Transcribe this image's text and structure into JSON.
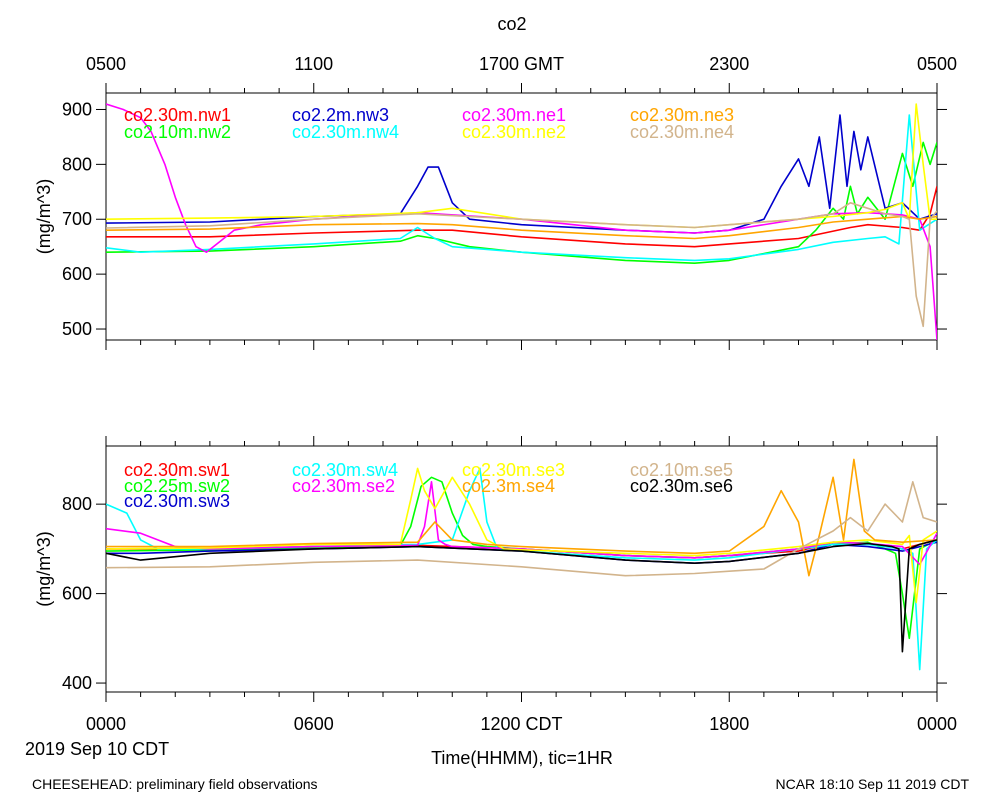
{
  "title": "co2",
  "top_axis": {
    "labels": [
      "0500",
      "1100",
      "1700 GMT",
      "2300",
      "0500"
    ]
  },
  "bottom_axis": {
    "labels": [
      "0000",
      "0600",
      "1200 CDT",
      "1800",
      "0000"
    ],
    "date": "2019 Sep 10 CDT",
    "xlabel": "Time(HHMM), tic=1HR"
  },
  "footer": {
    "left": "CHEESEHEAD: preliminary field observations",
    "right": "NCAR 18:10 Sep 11 2019 CDT"
  },
  "chart_data": [
    {
      "type": "line",
      "panel": "top",
      "ylabel": "(mg/m^3)",
      "ylim": [
        480,
        930
      ],
      "yticks": [
        500,
        600,
        700,
        800,
        900
      ],
      "xlim": [
        0,
        24
      ],
      "series": [
        {
          "name": "co2.30m.nw1",
          "color": "#ff0000",
          "x": [
            0,
            3,
            6,
            9,
            10,
            12,
            15,
            17,
            18,
            20,
            21.5,
            22,
            23,
            23.5,
            23.8,
            24
          ],
          "y": [
            668,
            668,
            675,
            680,
            680,
            668,
            655,
            650,
            655,
            665,
            685,
            690,
            685,
            680,
            710,
            760
          ]
        },
        {
          "name": "co2.10m.nw2",
          "color": "#00ff00",
          "x": [
            0,
            3,
            6,
            8.5,
            9,
            9.5,
            10.5,
            12,
            15,
            17,
            18,
            20,
            20.5,
            21,
            21.3,
            21.5,
            21.7,
            22,
            22.5,
            23,
            23.3,
            23.6,
            23.8,
            24
          ],
          "y": [
            640,
            642,
            650,
            660,
            670,
            665,
            650,
            640,
            625,
            620,
            625,
            650,
            680,
            720,
            700,
            760,
            710,
            740,
            700,
            820,
            760,
            840,
            800,
            840
          ]
        },
        {
          "name": "co2.2m.nw3",
          "color": "#0000cc",
          "x": [
            0,
            3,
            6,
            8.5,
            9,
            9.3,
            9.6,
            10,
            10.5,
            12,
            15,
            17,
            18,
            19,
            19.5,
            20,
            20.3,
            20.6,
            20.9,
            21.2,
            21.4,
            21.6,
            21.8,
            22,
            22.5,
            23,
            23.5,
            24
          ],
          "y": [
            693,
            695,
            705,
            710,
            760,
            795,
            795,
            730,
            700,
            690,
            680,
            675,
            680,
            700,
            760,
            810,
            760,
            850,
            720,
            890,
            760,
            860,
            790,
            850,
            720,
            730,
            700,
            710
          ]
        },
        {
          "name": "co2.30m.nw4",
          "color": "#00ffff",
          "x": [
            0,
            1,
            3,
            6,
            8.5,
            9,
            9.5,
            10,
            12,
            15,
            17,
            18,
            20,
            21,
            22,
            22.5,
            22.9,
            23.2,
            23.5,
            24
          ],
          "y": [
            648,
            640,
            645,
            655,
            665,
            685,
            665,
            650,
            640,
            630,
            625,
            628,
            645,
            658,
            665,
            668,
            655,
            890,
            680,
            700
          ]
        },
        {
          "name": "co2.30m.ne1",
          "color": "#ff00ff",
          "x": [
            0,
            0.5,
            1,
            1.3,
            1.7,
            2.0,
            2.3,
            2.6,
            2.9,
            3.3,
            3.7,
            4.5,
            6,
            9,
            12,
            15,
            17,
            18,
            20,
            21,
            22,
            23,
            23.5,
            23.8,
            24
          ],
          "y": [
            910,
            900,
            885,
            860,
            800,
            740,
            690,
            650,
            640,
            660,
            680,
            690,
            700,
            712,
            700,
            680,
            675,
            680,
            700,
            710,
            712,
            708,
            700,
            650,
            480
          ]
        },
        {
          "name": "co2.30m.ne2",
          "color": "#ffff00",
          "x": [
            0,
            3,
            6,
            9,
            10,
            12,
            15,
            17,
            18,
            20,
            21,
            22,
            22.5,
            23,
            23.2,
            23.4,
            23.6,
            23.8,
            24
          ],
          "y": [
            700,
            702,
            705,
            712,
            720,
            700,
            690,
            685,
            690,
            700,
            705,
            712,
            718,
            730,
            700,
            910,
            800,
            700,
            700
          ]
        },
        {
          "name": "co2.30m.ne3",
          "color": "#ffa500",
          "x": [
            0,
            3,
            6,
            9,
            10,
            12,
            15,
            17,
            18,
            20,
            21,
            22,
            23,
            23.5,
            24
          ],
          "y": [
            680,
            682,
            690,
            692,
            690,
            680,
            670,
            665,
            670,
            685,
            695,
            700,
            705,
            700,
            705
          ]
        },
        {
          "name": "co2.30m.ne4",
          "color": "#d2b48c",
          "x": [
            0,
            3,
            6,
            9,
            12,
            15,
            17,
            18,
            20,
            21,
            21.5,
            22,
            22.5,
            23,
            23.2,
            23.4,
            23.6,
            23.8,
            24
          ],
          "y": [
            684,
            688,
            700,
            710,
            700,
            690,
            685,
            690,
            700,
            710,
            730,
            720,
            710,
            705,
            700,
            560,
            505,
            700,
            715
          ]
        }
      ]
    },
    {
      "type": "line",
      "panel": "bottom",
      "ylabel": "(mg/m^3)",
      "ylim": [
        380,
        930
      ],
      "yticks": [
        400,
        600,
        800
      ],
      "xlim": [
        0,
        24
      ],
      "series": [
        {
          "name": "co2.30m.sw1",
          "color": "#ff0000",
          "x": [
            0,
            3,
            6,
            9,
            12,
            15,
            17,
            18,
            20,
            21,
            22,
            23,
            24
          ],
          "y": [
            700,
            700,
            705,
            708,
            700,
            685,
            680,
            685,
            695,
            715,
            712,
            700,
            720
          ]
        },
        {
          "name": "co2.25m.sw2",
          "color": "#00ff00",
          "x": [
            0,
            3,
            6,
            8.5,
            8.8,
            9.1,
            9.4,
            9.7,
            10,
            10.3,
            10.6,
            11,
            12,
            15,
            17,
            18,
            20,
            21,
            22,
            22.5,
            22.8,
            23,
            23.2,
            23.5,
            24
          ],
          "y": [
            695,
            698,
            703,
            707,
            750,
            840,
            860,
            850,
            780,
            730,
            710,
            705,
            700,
            685,
            680,
            685,
            700,
            710,
            715,
            700,
            690,
            600,
            500,
            700,
            720
          ]
        },
        {
          "name": "co2.30m.sw3",
          "color": "#0000cc",
          "x": [
            0,
            1,
            3,
            6,
            9,
            12,
            15,
            17,
            18,
            20,
            21,
            22,
            23,
            24
          ],
          "y": [
            690,
            690,
            695,
            700,
            705,
            695,
            675,
            668,
            672,
            690,
            710,
            705,
            695,
            715
          ]
        },
        {
          "name": "co2.30m.sw4",
          "color": "#00ffff",
          "x": [
            0,
            0.6,
            1,
            1.5,
            3,
            6,
            9,
            10,
            10.5,
            10.8,
            11,
            11.3,
            12,
            15,
            17,
            18,
            20,
            21,
            22,
            23,
            23.3,
            23.5,
            23.7,
            24
          ],
          "y": [
            800,
            780,
            720,
            700,
            700,
            705,
            710,
            720,
            830,
            880,
            760,
            700,
            695,
            680,
            675,
            680,
            700,
            710,
            710,
            700,
            690,
            430,
            700,
            720
          ]
        },
        {
          "name": "co2.30m.se2",
          "color": "#ff00ff",
          "x": [
            0,
            1,
            2,
            3,
            6,
            9,
            9.2,
            9.4,
            9.6,
            9.8,
            10,
            12,
            15,
            17,
            18,
            20,
            21,
            22,
            23,
            23.5,
            24
          ],
          "y": [
            745,
            735,
            705,
            700,
            705,
            708,
            750,
            850,
            720,
            710,
            705,
            700,
            685,
            680,
            685,
            700,
            715,
            712,
            705,
            665,
            735
          ]
        },
        {
          "name": "co2.30m.se3",
          "color": "#ffff00",
          "x": [
            0,
            3,
            6,
            8.5,
            8.8,
            9.0,
            9.2,
            9.5,
            10,
            10.5,
            11,
            11.5,
            12,
            15,
            17,
            18,
            20,
            21,
            22,
            23,
            23.2,
            23.4,
            23.6,
            24
          ],
          "y": [
            700,
            702,
            710,
            710,
            810,
            880,
            830,
            790,
            860,
            800,
            720,
            700,
            698,
            690,
            685,
            690,
            705,
            715,
            720,
            710,
            730,
            580,
            720,
            740
          ]
        },
        {
          "name": "co2.3m.se4",
          "color": "#ffa500",
          "x": [
            0,
            3,
            6,
            9,
            9.5,
            10,
            11,
            12,
            15,
            17,
            18,
            19,
            19.5,
            20,
            20.3,
            20.6,
            21,
            21.3,
            21.6,
            21.9,
            22.2,
            23,
            24
          ],
          "y": [
            705,
            705,
            712,
            715,
            760,
            720,
            710,
            705,
            695,
            690,
            695,
            750,
            830,
            760,
            640,
            730,
            860,
            720,
            900,
            740,
            720,
            715,
            720
          ]
        },
        {
          "name": "co2.10m.se5",
          "color": "#d2b48c",
          "x": [
            0,
            3,
            6,
            9,
            12,
            15,
            17,
            18,
            19,
            20,
            20.5,
            21,
            21.5,
            22,
            22.5,
            23,
            23.3,
            23.6,
            24
          ],
          "y": [
            658,
            660,
            670,
            675,
            660,
            640,
            645,
            650,
            655,
            700,
            720,
            740,
            770,
            740,
            800,
            760,
            850,
            770,
            760
          ]
        },
        {
          "name": "co2.30m.se6",
          "color": "#000000",
          "x": [
            0,
            1,
            3,
            6,
            9,
            12,
            15,
            17,
            18,
            20,
            21,
            22,
            22.7,
            22.9,
            23.0,
            23.2,
            23.5,
            24
          ],
          "y": [
            690,
            675,
            690,
            700,
            705,
            695,
            675,
            668,
            672,
            690,
            705,
            712,
            705,
            700,
            470,
            700,
            710,
            720
          ]
        }
      ]
    }
  ]
}
